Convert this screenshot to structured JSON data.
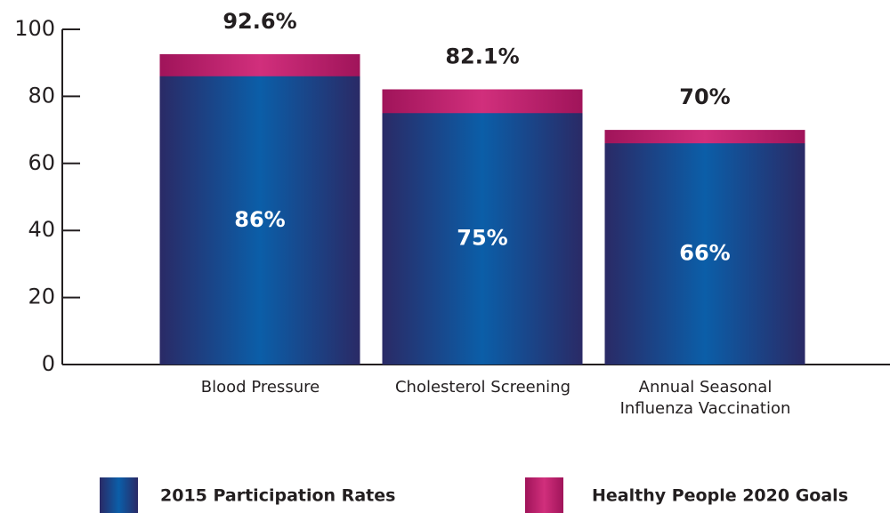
{
  "chart_data": {
    "type": "bar",
    "overlap": true,
    "categories": [
      "Blood Pressure",
      "Cholesterol Screening",
      "Annual Seasonal Influenza Vaccination"
    ],
    "series": [
      {
        "name": "2015 Participation Rates",
        "color": "#0b5ea8",
        "values": [
          86,
          75,
          66
        ],
        "value_labels": [
          "86%",
          "75%",
          "66%"
        ]
      },
      {
        "name": "Healthy People 2020 Goals",
        "color": "#d12f7c",
        "values": [
          92.6,
          82.1,
          70
        ],
        "value_labels": [
          "92.6%",
          "82.1%",
          "70%"
        ]
      }
    ],
    "ylim": [
      0,
      100
    ],
    "yticks": [
      0,
      20,
      40,
      60,
      80,
      100
    ]
  }
}
